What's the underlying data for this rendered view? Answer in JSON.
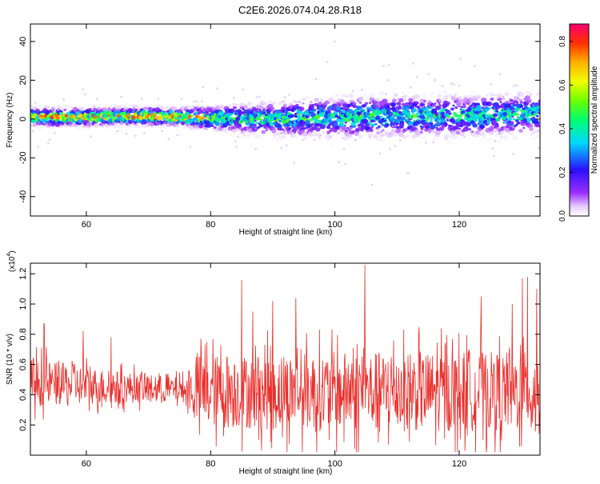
{
  "title": "C2E6.2026.074.04.28.R18",
  "chart_data": [
    {
      "type": "heatmap",
      "xlabel": "Height of straight line (km)",
      "ylabel": "Frequency (Hz)",
      "xlim": [
        51,
        133
      ],
      "ylim": [
        -50,
        49
      ],
      "xticks": [
        60,
        80,
        100,
        120
      ],
      "yticks": [
        -40,
        -20,
        0,
        20,
        40
      ],
      "colorbar": {
        "label": "Normalized spectral amplitude",
        "range": [
          0.0,
          0.88
        ],
        "ticks": [
          0.0,
          0.2,
          0.4,
          0.6,
          0.8
        ]
      },
      "band": {
        "center_hz": [
          {
            "x": 51,
            "y": 1
          },
          {
            "x": 60,
            "y": 1
          },
          {
            "x": 70,
            "y": 1.5
          },
          {
            "x": 80,
            "y": 0.5
          },
          {
            "x": 90,
            "y": 0
          },
          {
            "x": 100,
            "y": 1
          },
          {
            "x": 110,
            "y": 1.5
          },
          {
            "x": 120,
            "y": 1.5
          },
          {
            "x": 133,
            "y": 3
          }
        ],
        "halfwidth_hz": [
          {
            "x": 51,
            "y": 3
          },
          {
            "x": 75,
            "y": 3
          },
          {
            "x": 85,
            "y": 5
          },
          {
            "x": 100,
            "y": 7
          },
          {
            "x": 133,
            "y": 7
          }
        ],
        "peak_amplitude": [
          {
            "x": 51,
            "y": 0.88
          },
          {
            "x": 78,
            "y": 0.85
          },
          {
            "x": 82,
            "y": 0.55
          },
          {
            "x": 133,
            "y": 0.5
          }
        ]
      }
    },
    {
      "type": "line",
      "xlabel": "Height of straight line (km)",
      "ylabel": "SNR (10 * v/v)",
      "y_multiplier": "(x10",
      "y_multiplier_exp": "4",
      "xlim": [
        51,
        133
      ],
      "ylim": [
        0.0,
        1.27
      ],
      "xticks": [
        60,
        80,
        100,
        120
      ],
      "yticks": [
        0.2,
        0.4,
        0.6,
        0.8,
        1.0,
        1.2
      ],
      "series": [
        {
          "color": "#e8302c",
          "envelope_mean": [
            {
              "x": 51,
              "y": 0.48
            },
            {
              "x": 65,
              "y": 0.45
            },
            {
              "x": 76,
              "y": 0.43
            },
            {
              "x": 80,
              "y": 0.42
            },
            {
              "x": 100,
              "y": 0.42
            },
            {
              "x": 133,
              "y": 0.42
            }
          ],
          "envelope_amplitude": [
            {
              "x": 51,
              "y": 0.2
            },
            {
              "x": 66,
              "y": 0.13
            },
            {
              "x": 76,
              "y": 0.1
            },
            {
              "x": 78,
              "y": 0.3
            },
            {
              "x": 100,
              "y": 0.33
            },
            {
              "x": 133,
              "y": 0.33
            }
          ],
          "peaks": [
            {
              "x": 53.2,
              "y": 0.87
            },
            {
              "x": 59.5,
              "y": 0.82
            },
            {
              "x": 64.0,
              "y": 0.78
            },
            {
              "x": 85.0,
              "y": 1.16
            },
            {
              "x": 86.8,
              "y": 0.95
            },
            {
              "x": 90.0,
              "y": 1.02
            },
            {
              "x": 93.7,
              "y": 1.04
            },
            {
              "x": 104.8,
              "y": 1.26
            },
            {
              "x": 123.5,
              "y": 1.05
            },
            {
              "x": 128.5,
              "y": 1.0
            },
            {
              "x": 130.2,
              "y": 1.17
            },
            {
              "x": 131.0,
              "y": 1.18
            },
            {
              "x": 132.5,
              "y": 1.1
            }
          ]
        }
      ]
    }
  ]
}
